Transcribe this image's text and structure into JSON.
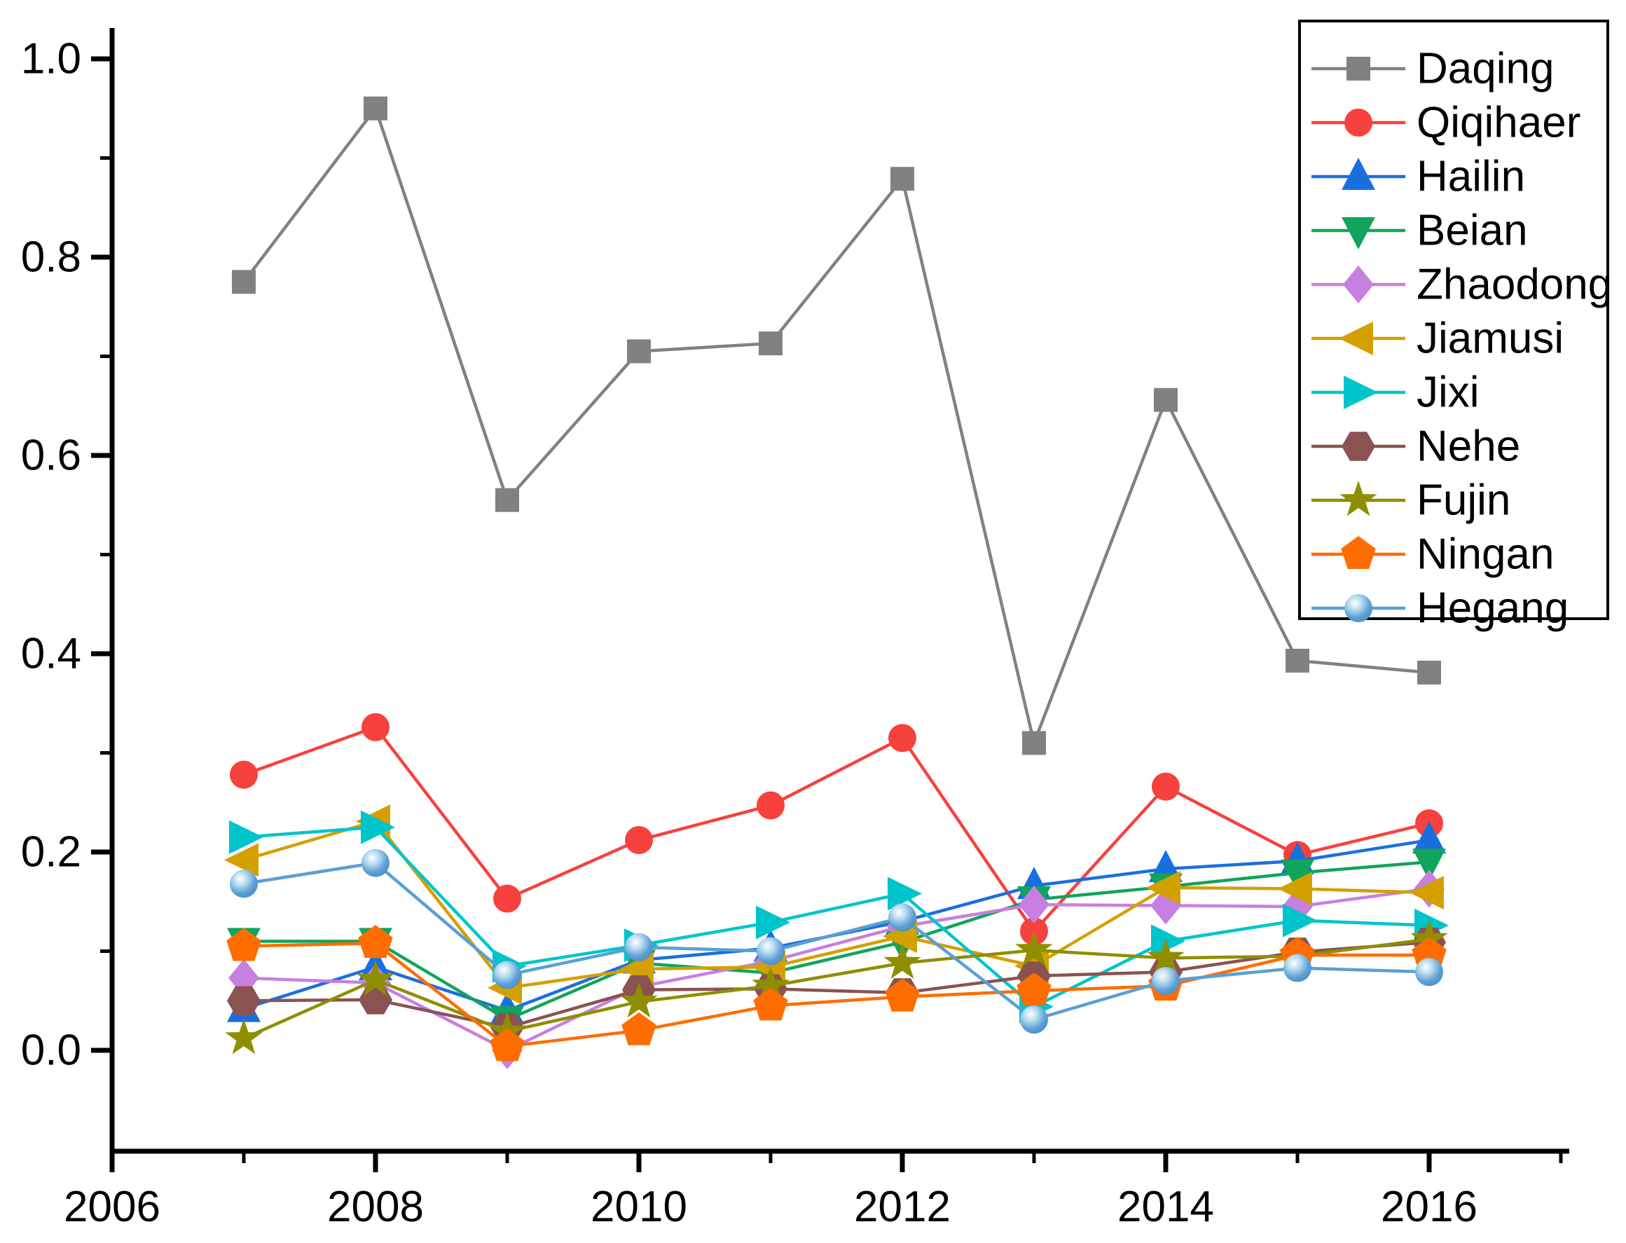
{
  "chart_data": {
    "type": "line",
    "title": "",
    "xlabel": "",
    "ylabel": "",
    "x": [
      2007,
      2008,
      2009,
      2010,
      2011,
      2012,
      2013,
      2014,
      2015,
      2016
    ],
    "xlim": [
      2006,
      2017.06
    ],
    "ylim": [
      -0.102,
      1.031
    ],
    "x_major_ticks": [
      2006,
      2008,
      2010,
      2012,
      2014,
      2016
    ],
    "x_major_tick_labels": [
      "2006",
      "2008",
      "2010",
      "2012",
      "2014",
      "2016"
    ],
    "x_minor_ticks": [
      2007,
      2009,
      2011,
      2013,
      2015,
      2017
    ],
    "y_major_ticks": [
      0.0,
      0.2,
      0.4,
      0.6,
      0.8,
      1.0
    ],
    "y_major_tick_labels": [
      "0.0",
      "0.2",
      "0.4",
      "0.6",
      "0.8",
      "1.0"
    ],
    "y_minor_ticks": [
      0.1,
      0.3,
      0.5,
      0.7,
      0.9
    ],
    "grid": false,
    "legend_position": "top-right",
    "series": [
      {
        "name": "Daqing",
        "color": "#818181",
        "marker": "square",
        "values": [
          0.775,
          0.95,
          0.555,
          0.705,
          0.713,
          0.879,
          0.31,
          0.656,
          0.393,
          0.381
        ]
      },
      {
        "name": "Qiqihaer",
        "color": "#f7413e",
        "marker": "circle",
        "values": [
          0.278,
          0.326,
          0.153,
          0.212,
          0.247,
          0.315,
          0.12,
          0.266,
          0.197,
          0.229
        ]
      },
      {
        "name": "Hailin",
        "color": "#1a6fdf",
        "marker": "triangle-up",
        "values": [
          0.042,
          0.084,
          0.04,
          0.091,
          0.103,
          0.13,
          0.166,
          0.183,
          0.191,
          0.212
        ]
      },
      {
        "name": "Beian",
        "color": "#11a45c",
        "marker": "triangle-down",
        "values": [
          0.11,
          0.11,
          0.031,
          0.088,
          0.078,
          0.109,
          0.152,
          0.165,
          0.179,
          0.19
        ]
      },
      {
        "name": "Zhaodong",
        "color": "#c77fe2",
        "marker": "diamond",
        "values": [
          0.073,
          0.068,
          0.0,
          0.064,
          0.09,
          0.125,
          0.147,
          0.146,
          0.145,
          0.163
        ]
      },
      {
        "name": "Jiamusi",
        "color": "#d4a000",
        "marker": "triangle-left",
        "values": [
          0.192,
          0.231,
          0.063,
          0.082,
          0.084,
          0.115,
          0.085,
          0.164,
          0.163,
          0.159
        ]
      },
      {
        "name": "Jixi",
        "color": "#00c4cc",
        "marker": "triangle-right",
        "values": [
          0.215,
          0.225,
          0.085,
          0.106,
          0.129,
          0.158,
          0.044,
          0.11,
          0.131,
          0.126
        ]
      },
      {
        "name": "Nehe",
        "color": "#8a5251",
        "marker": "hexagon",
        "values": [
          0.05,
          0.051,
          0.023,
          0.061,
          0.062,
          0.058,
          0.075,
          0.079,
          0.099,
          0.109
        ]
      },
      {
        "name": "Fujin",
        "color": "#8e8e00",
        "marker": "star",
        "values": [
          0.012,
          0.071,
          0.019,
          0.049,
          0.065,
          0.088,
          0.101,
          0.093,
          0.095,
          0.112
        ]
      },
      {
        "name": "Ningan",
        "color": "#ff6d00",
        "marker": "pentagon",
        "values": [
          0.105,
          0.108,
          0.004,
          0.02,
          0.045,
          0.054,
          0.06,
          0.065,
          0.096,
          0.096
        ]
      },
      {
        "name": "Hegang",
        "color": "#5b9fd4",
        "marker": "ball",
        "values": [
          0.168,
          0.189,
          0.076,
          0.104,
          0.1,
          0.134,
          0.031,
          0.07,
          0.083,
          0.079
        ]
      }
    ],
    "legend_entries": [
      "Daqing",
      "Qiqihaer",
      "Hailin",
      "Beian",
      "Zhaodong",
      "Jiamusi",
      "Jixi",
      "Nehe",
      "Fujin",
      "Ningan",
      "Hegang"
    ]
  },
  "colors": {
    "axis": "#000000",
    "background": "#ffffff",
    "ball_highlight": "#ffffff",
    "ball_mid": "#b8dcf2",
    "ball_edge": "#4286bd"
  }
}
